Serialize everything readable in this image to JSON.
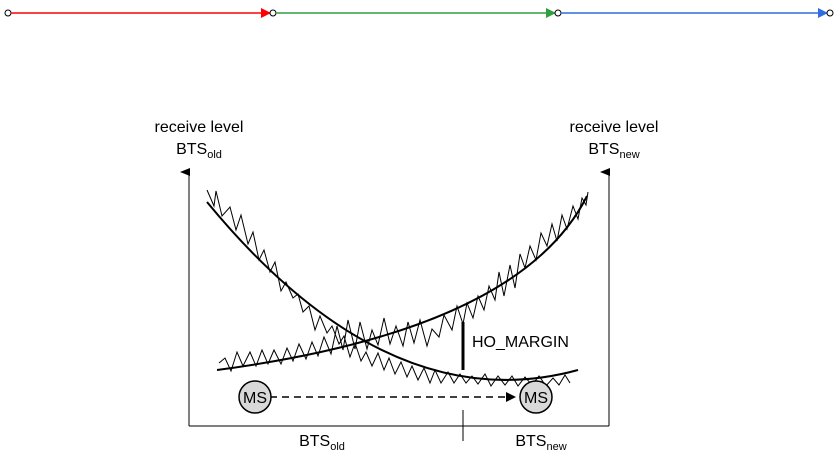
{
  "top_connector": {
    "segments": [
      {
        "color": "#ff0000"
      },
      {
        "color": "#2e9e3e"
      },
      {
        "color": "#2f6ee0"
      }
    ]
  },
  "axes": {
    "left_label": {
      "line1": "receive level",
      "base": "BTS",
      "sub": "old"
    },
    "right_label": {
      "line1": "receive level",
      "base": "BTS",
      "sub": "new"
    }
  },
  "bottom_labels": {
    "old": {
      "base": "BTS",
      "sub": "old"
    },
    "new": {
      "base": "BTS",
      "sub": "new"
    }
  },
  "margin_label": "HO_MARGIN",
  "mobile_stations": [
    {
      "label": "MS"
    },
    {
      "label": "MS"
    }
  ]
}
